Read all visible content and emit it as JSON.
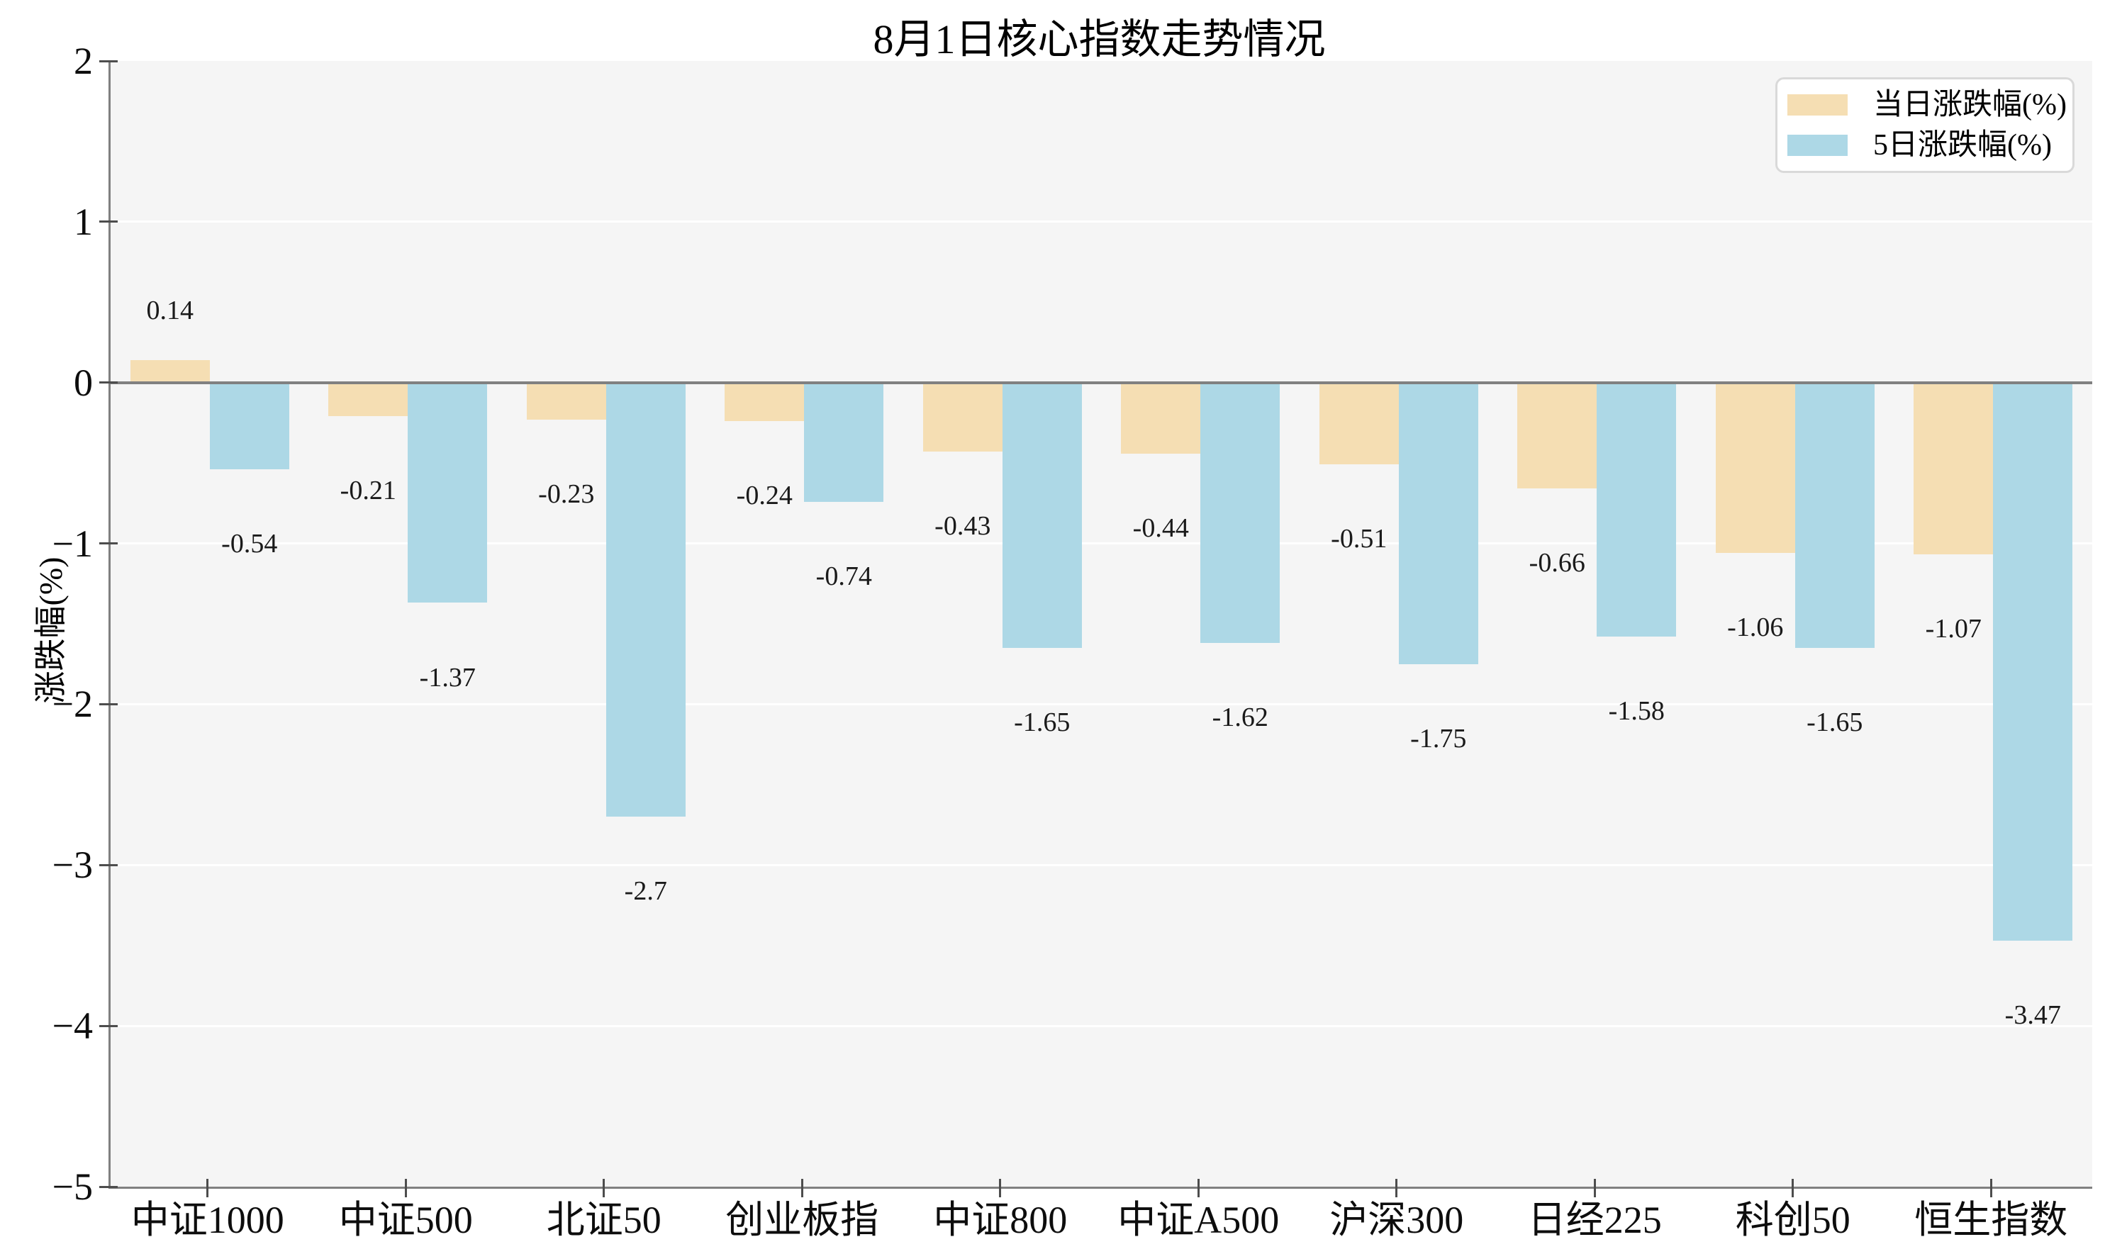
{
  "title": "8月1日核心指数走势情况",
  "axes": {
    "y_label": "涨跌幅(%)",
    "y_tick_labels": [
      "2",
      "1",
      "0",
      "−1",
      "−2",
      "−3",
      "−4",
      "−5"
    ],
    "y_tick_values": [
      2,
      1,
      0,
      -1,
      -2,
      -3,
      -4,
      -5
    ],
    "y_max": 2,
    "y_min": -5
  },
  "legend": {
    "items": [
      {
        "label": "当日涨跌幅(%)",
        "color": "#f5deb3"
      },
      {
        "label": "5日涨跌幅(%)",
        "color": "#add8e6"
      }
    ]
  },
  "colors": {
    "plot_background": "#f5f5f5",
    "gridline": "#ffffff",
    "axis_spine": "#808080",
    "zero_line": "#808080",
    "series_day": "#f5deb3",
    "series_5day": "#add8e6"
  },
  "chart_data": {
    "type": "bar",
    "title": "8月1日核心指数走势情况",
    "xlabel": "",
    "ylabel": "涨跌幅(%)",
    "ylim": [
      -5,
      2
    ],
    "grid": true,
    "legend_position": "upper right",
    "categories": [
      "中证1000",
      "中证500",
      "北证50",
      "创业板指",
      "中证800",
      "中证A500",
      "沪深300",
      "日经225",
      "科创50",
      "恒生指数"
    ],
    "series": [
      {
        "name": "当日涨跌幅(%)",
        "color": "#f5deb3",
        "values": [
          0.14,
          -0.21,
          -0.23,
          -0.24,
          -0.43,
          -0.44,
          -0.51,
          -0.66,
          -1.06,
          -1.07
        ],
        "labels": [
          "0.14",
          "-0.21",
          "-0.23",
          "-0.24",
          "-0.43",
          "-0.44",
          "-0.51",
          "-0.66",
          "-1.06",
          "-1.07"
        ]
      },
      {
        "name": "5日涨跌幅(%)",
        "color": "#add8e6",
        "values": [
          -0.54,
          -1.37,
          -2.7,
          -0.74,
          -1.65,
          -1.62,
          -1.75,
          -1.58,
          -1.65,
          -3.47
        ],
        "labels": [
          "-0.54",
          "-1.37",
          "-2.7",
          "-0.74",
          "-1.65",
          "-1.62",
          "-1.75",
          "-1.58",
          "-1.65",
          "-3.47"
        ]
      }
    ]
  }
}
